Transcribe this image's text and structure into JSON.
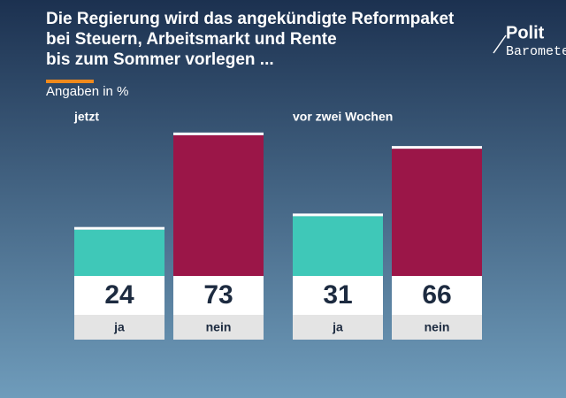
{
  "header": {
    "title": [
      "Die Regierung wird das angekündigte Reformpaket",
      "bei Steuern, Arbeitsmarkt und Rente",
      "bis zum Sommer vorlegen ..."
    ],
    "subtitle": "Angaben in %",
    "logo": [
      "Polit",
      "Barometer"
    ]
  },
  "chart_data": [
    {
      "type": "bar",
      "title": "jetzt",
      "categories": [
        "ja",
        "nein"
      ],
      "values": [
        24,
        73
      ],
      "colors": [
        "#3fc8b8",
        "#9b1648"
      ]
    },
    {
      "type": "bar",
      "title": "vor zwei Wochen",
      "categories": [
        "ja",
        "nein"
      ],
      "values": [
        31,
        66
      ],
      "colors": [
        "#3fc8b8",
        "#9b1648"
      ]
    }
  ]
}
